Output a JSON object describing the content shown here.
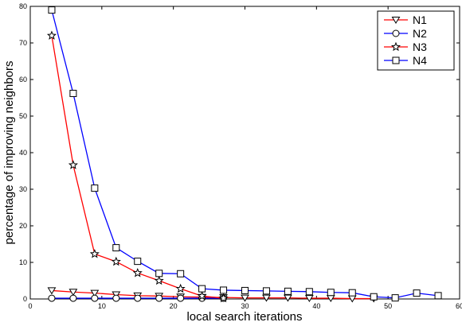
{
  "chart_data": {
    "type": "line",
    "xlabel": "local search iterations",
    "ylabel": "percentage of improving neighbors",
    "xlim": [
      0,
      60
    ],
    "xticks": [
      0,
      10,
      20,
      30,
      40,
      50,
      60
    ],
    "ylim": [
      0,
      80
    ],
    "yticks": [
      0,
      10,
      20,
      30,
      40,
      50,
      60,
      70,
      80
    ],
    "legend": "upper right",
    "series": [
      {
        "name": "N1",
        "color": "#ff0000",
        "marker": "triangle-down",
        "x": [
          3,
          6,
          9,
          12,
          15,
          18,
          21,
          24,
          27,
          30,
          33,
          36,
          39,
          42,
          45,
          48
        ],
        "values": [
          2.3,
          1.9,
          1.6,
          1.2,
          0.9,
          0.8,
          0.6,
          0.5,
          0.4,
          0.3,
          0.3,
          0.3,
          0.2,
          0.2,
          0.1,
          0.1
        ]
      },
      {
        "name": "N2",
        "color": "#0000ff",
        "marker": "circle",
        "x": [
          3,
          6,
          9,
          12,
          15,
          18,
          21,
          24,
          27
        ],
        "values": [
          0.2,
          0.2,
          0.2,
          0.2,
          0.2,
          0.2,
          0.2,
          0.2,
          0.2
        ]
      },
      {
        "name": "N3",
        "color": "#ff0000",
        "marker": "star",
        "x": [
          3,
          6,
          9,
          12,
          15,
          18,
          21,
          24,
          27
        ],
        "values": [
          72,
          36.6,
          12.3,
          10.2,
          7.1,
          5,
          2.8,
          0.8,
          0.2
        ]
      },
      {
        "name": "N4",
        "color": "#0000ff",
        "marker": "square",
        "x": [
          3,
          6,
          9,
          12,
          15,
          18,
          21,
          24,
          27,
          30,
          33,
          36,
          39,
          42,
          45,
          48,
          51,
          54,
          57
        ],
        "values": [
          79,
          56.2,
          30.3,
          14,
          10.3,
          7,
          6.9,
          2.8,
          2.4,
          2.3,
          2.2,
          2.1,
          2.0,
          1.8,
          1.7,
          0.6,
          0.3,
          1.6,
          0.9
        ]
      }
    ]
  }
}
